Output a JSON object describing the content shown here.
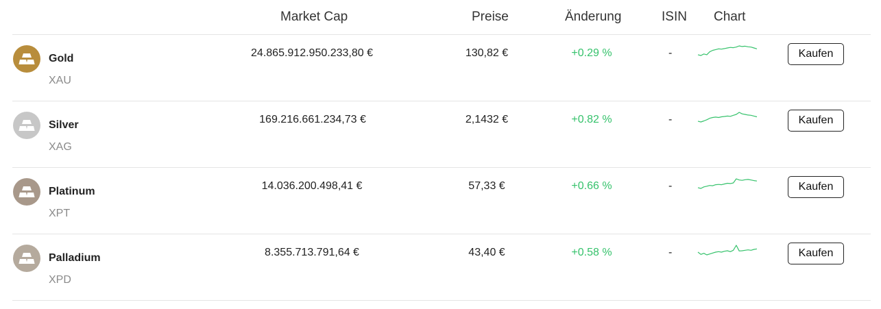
{
  "headers": {
    "market_cap": "Market Cap",
    "price": "Preise",
    "change": "Änderung",
    "isin": "ISIN",
    "chart": "Chart"
  },
  "colors": {
    "positive": "#35c26b",
    "spark_line": "#35c26b"
  },
  "rows": [
    {
      "name": "Gold",
      "symbol": "XAU",
      "icon": "gold-bars-icon",
      "icon_color": "#b88d3c",
      "market_cap": "24.865.912.950.233,80 €",
      "price": "130,82 €",
      "change": "+0.29 %",
      "isin": "-",
      "button": "Kaufen",
      "spark": [
        3,
        2.5,
        3.5,
        3,
        5,
        6,
        6.5,
        7,
        6.8,
        7.2,
        7.6,
        8,
        7.8,
        8.2,
        9,
        8.6,
        8.8,
        8.4,
        8.2,
        7.6,
        7
      ]
    },
    {
      "name": "Silver",
      "symbol": "XAG",
      "icon": "silver-bars-icon",
      "icon_color": "#c7c7c7",
      "market_cap": "169.216.661.234,73 €",
      "price": "2,1432 €",
      "change": "+0.82 %",
      "isin": "-",
      "button": "Kaufen",
      "spark": [
        3,
        2.5,
        3.2,
        4,
        5,
        5.5,
        5.8,
        5.5,
        6,
        6.2,
        6.5,
        6.3,
        7,
        7.6,
        9,
        8,
        7.6,
        7.2,
        7,
        6.5,
        6
      ]
    },
    {
      "name": "Platinum",
      "symbol": "XPT",
      "icon": "platinum-bars-icon",
      "icon_color": "#a8988a",
      "market_cap": "14.036.200.498,41 €",
      "price": "57,33 €",
      "change": "+0.66 %",
      "isin": "-",
      "button": "Kaufen",
      "spark": [
        3,
        2.5,
        3.5,
        4,
        4.5,
        4.3,
        5,
        5.2,
        5,
        5.5,
        6,
        5.8,
        6.2,
        9,
        8.2,
        8,
        8.4,
        8.6,
        8.2,
        7.8,
        7.5
      ]
    },
    {
      "name": "Palladium",
      "symbol": "XPD",
      "icon": "palladium-bars-icon",
      "icon_color": "#b5aa9d",
      "market_cap": "8.355.713.791,64 €",
      "price": "43,40 €",
      "change": "+0.58 %",
      "isin": "-",
      "button": "Kaufen",
      "spark": [
        5,
        4,
        4.5,
        3.8,
        4.2,
        4.6,
        5,
        5.2,
        5,
        5.4,
        5.6,
        5.2,
        5.8,
        8,
        5.5,
        5.6,
        5.8,
        6,
        5.8,
        6.2,
        6.4
      ]
    }
  ]
}
